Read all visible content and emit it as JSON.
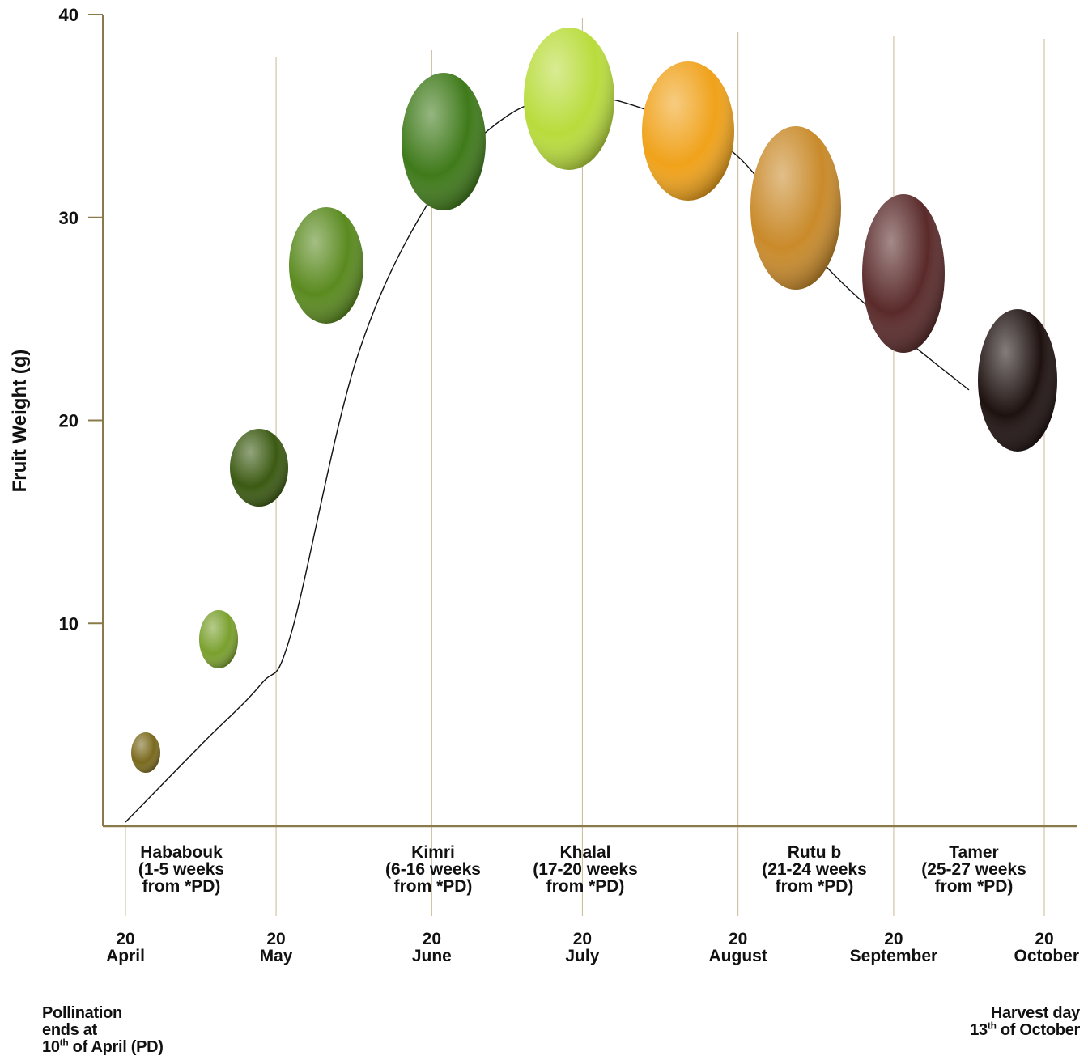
{
  "chart_data": {
    "type": "line",
    "title": "",
    "ylabel": "Fruit Weight (g)",
    "xlabel": "",
    "ylim": [
      0,
      40
    ],
    "yticks": [
      "10",
      "20",
      "30",
      "40"
    ],
    "ytick_values": [
      10,
      20,
      30,
      40
    ],
    "x_ticks": [
      {
        "day": "20",
        "month": "April",
        "offset_days": 0
      },
      {
        "day": "20",
        "month": "May",
        "offset_days": 30
      },
      {
        "day": "20",
        "month": "June",
        "offset_days": 61
      },
      {
        "day": "20",
        "month": "July",
        "offset_days": 91
      },
      {
        "day": "20",
        "month": "August",
        "offset_days": 122
      },
      {
        "day": "20",
        "month": "September",
        "offset_days": 153
      },
      {
        "day": "20",
        "month": "October",
        "offset_days": 183
      }
    ],
    "series": [
      {
        "x": [
          "20 April",
          "5 May",
          "17 May",
          "23 May",
          "5 June",
          "20 June",
          "5 July",
          "20 July",
          "5 August",
          "20 August",
          "5 September",
          "20 September",
          "5 October"
        ],
        "values": [
          0.2,
          4,
          7,
          9.5,
          23,
          31,
          35,
          36,
          35,
          33,
          28,
          24.5,
          21.5
        ]
      }
    ],
    "stages": [
      {
        "name": "Hababouk",
        "line2": "(1-5 weeks",
        "line3": "from *PD)"
      },
      {
        "name": "Kimri",
        "line2": "(6-16 weeks",
        "line3": "from *PD)"
      },
      {
        "name": "Khalal",
        "line2": "(17-20 weeks",
        "line3": "from *PD)"
      },
      {
        "name": "Rutu b",
        "line2": "(21-24 weeks",
        "line3": "from *PD)"
      },
      {
        "name": "Tamer",
        "line2": "(25-27 weeks",
        "line3": "from *PD)"
      }
    ],
    "fruit_colors": [
      "#7a6a1e",
      "#7aa02e",
      "#3b5a12",
      "#5a8a1f",
      "#3f7a1a",
      "#b9dc3c",
      "#f0a21a",
      "#c98a2a",
      "#5a2a2a",
      "#1e1210"
    ],
    "grid": false,
    "legend": "none"
  },
  "notes": {
    "left_line1": "Pollination",
    "left_line2": "ends at",
    "left_line3_num": "10",
    "left_line3_sup": "th",
    "left_line3_rest": " of April (PD)",
    "right_line1": "Harvest day",
    "right_line2_num": "13",
    "right_line2_sup": "th",
    "right_line2_rest": " of October"
  },
  "colors": {
    "axis": "#8a7a4a",
    "gridline": "#c8b896",
    "curve": "#111111"
  }
}
